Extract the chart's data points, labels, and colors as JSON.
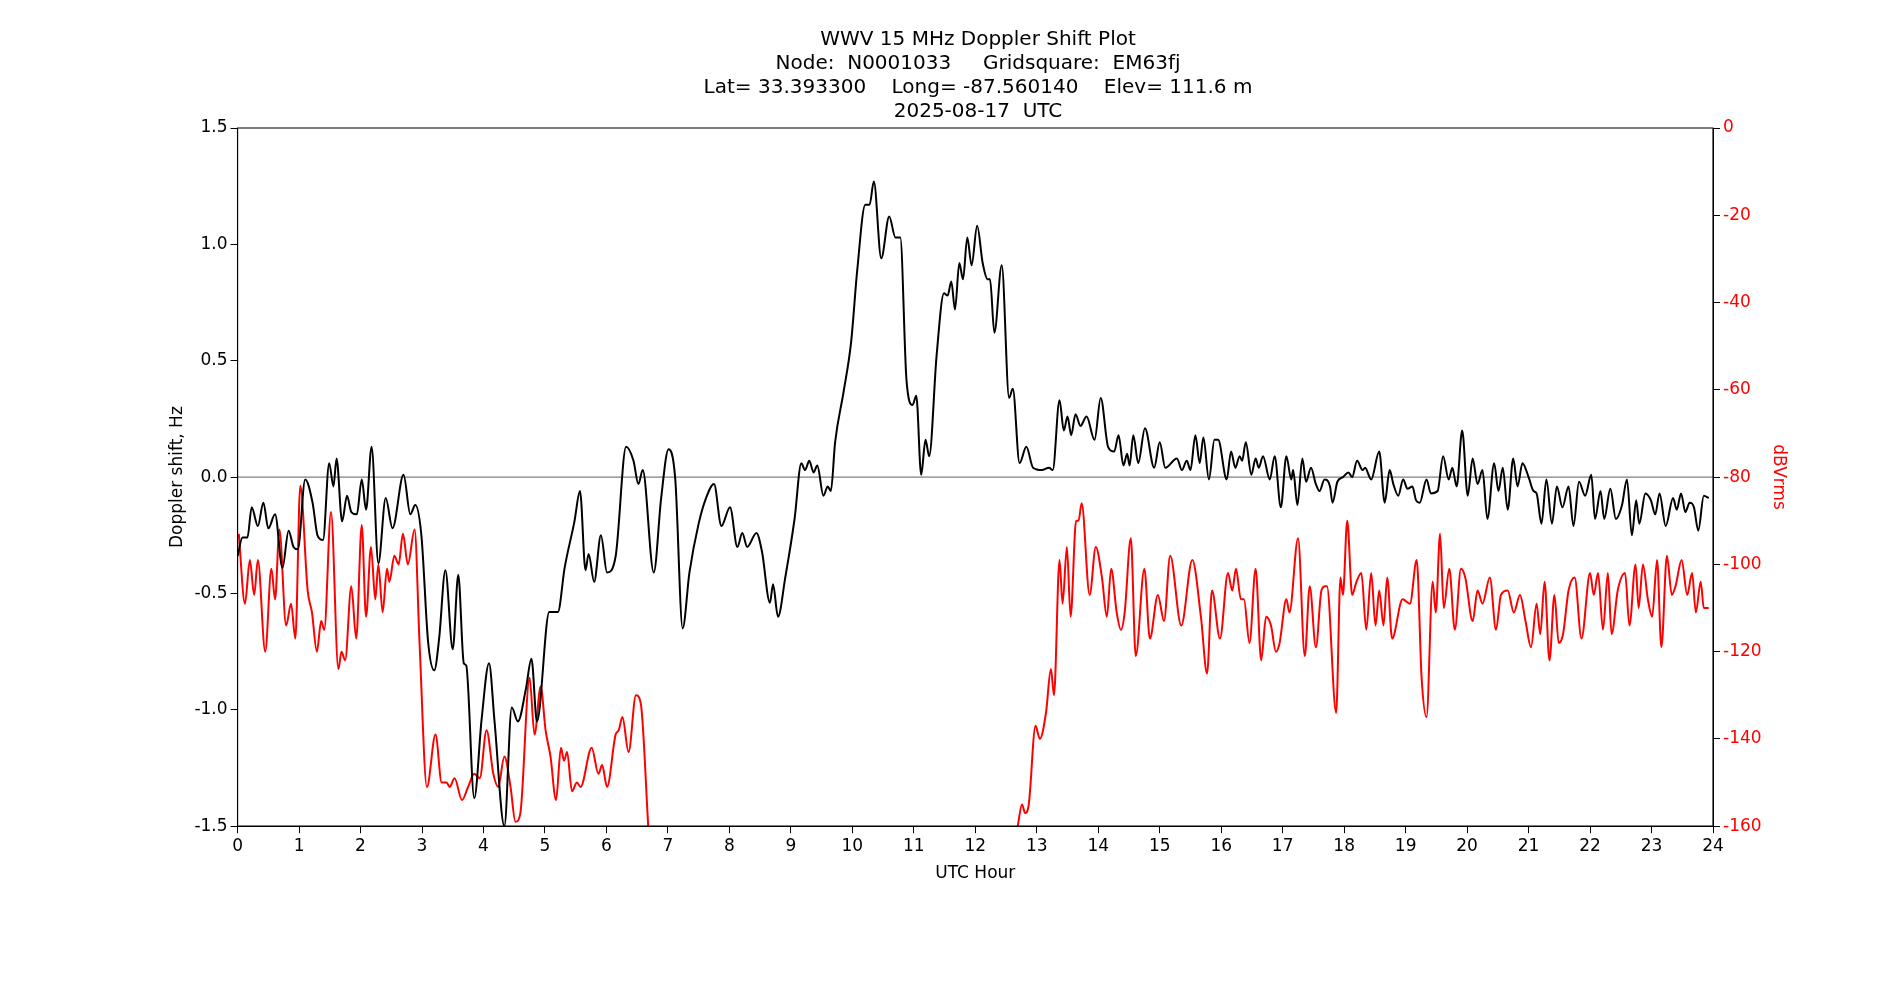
{
  "chart_data": {
    "type": "line",
    "title": "WWV 15 MHz Doppler Shift Plot",
    "subtitle": "Node:  N0001033     Gridsquare:  EM63fj\nLat= 33.393300    Long= -87.560140    Elev= 111.6 m\n2025-08-17  UTC",
    "xlabel": "UTC Hour",
    "ylabel": "Doppler shift, Hz",
    "y2label": "dBVrms",
    "xlim": [
      0,
      24
    ],
    "xticks": [
      0,
      1,
      2,
      3,
      4,
      5,
      6,
      7,
      8,
      9,
      10,
      11,
      12,
      13,
      14,
      15,
      16,
      17,
      18,
      19,
      20,
      21,
      22,
      23,
      24
    ],
    "ylim": [
      -1.5,
      1.5
    ],
    "yticks": [
      -1.5,
      {
        "value": -1,
        "label": "-1.0"
      },
      -0.5,
      {
        "value": 0,
        "label": "0.0"
      },
      0.5,
      {
        "value": 1,
        "label": "1.0"
      },
      1.5
    ],
    "y2lim": [
      -160,
      0
    ],
    "y2ticks": [
      -160,
      -140,
      -120,
      -100,
      -80,
      -60,
      -40,
      -20,
      0
    ],
    "grid": false,
    "legend": false,
    "marker": "none",
    "line_style": "solid",
    "ref_lines": [
      {
        "axis": "y",
        "value": 0,
        "color": "#808080"
      }
    ],
    "series": [
      {
        "color": "#000000",
        "x": [
          0,
          0.08,
          0.16,
          0.23,
          0.33,
          0.42,
          0.5,
          0.61,
          0.73,
          0.83,
          0.91,
          0.98,
          1.1,
          1.22,
          1.3,
          1.39,
          1.49,
          1.56,
          1.61,
          1.7,
          1.78,
          1.85,
          1.94,
          2.02,
          2.09,
          2.18,
          2.29,
          2.41,
          2.52,
          2.7,
          2.81,
          2.89,
          2.99,
          3.1,
          3.2,
          3.28,
          3.38,
          3.5,
          3.59,
          3.68,
          3.72,
          3.85,
          3.97,
          4.09,
          4.18,
          4.34,
          4.46,
          4.56,
          4.69,
          4.78,
          4.87,
          5.07,
          5.21,
          5.32,
          5.48,
          5.57,
          5.66,
          5.71,
          5.8,
          5.91,
          6.01,
          6.15,
          6.32,
          6.44,
          6.52,
          6.59,
          6.77,
          6.89,
          7.01,
          7.12,
          7.24,
          7.35,
          7.5,
          7.62,
          7.75,
          7.87,
          8.01,
          8.13,
          8.21,
          8.29,
          8.44,
          8.53,
          8.66,
          8.71,
          8.79,
          8.91,
          9.06,
          9.17,
          9.23,
          9.3,
          9.37,
          9.43,
          9.53,
          9.6,
          9.65,
          9.72,
          9.86,
          9.98,
          10.08,
          10.21,
          10.28,
          10.35,
          10.47,
          10.6,
          10.7,
          10.78,
          10.88,
          10.98,
          11.04,
          11.12,
          11.19,
          11.25,
          11.37,
          11.49,
          11.55,
          11.61,
          11.67,
          11.74,
          11.8,
          11.87,
          11.94,
          12.03,
          12.12,
          12.2,
          12.24,
          12.31,
          12.43,
          12.55,
          12.61,
          12.72,
          12.83,
          12.94,
          13.08,
          13.2,
          13.26,
          13.37,
          13.44,
          13.5,
          13.56,
          13.63,
          13.71,
          13.81,
          13.94,
          14.04,
          14.16,
          14.26,
          14.33,
          14.41,
          14.47,
          14.51,
          14.57,
          14.65,
          14.76,
          14.91,
          15.0,
          15.09,
          15.28,
          15.36,
          15.44,
          15.5,
          15.58,
          15.65,
          15.71,
          15.8,
          15.89,
          15.95,
          16.09,
          16.16,
          16.23,
          16.3,
          16.34,
          16.4,
          16.49,
          16.56,
          16.61,
          16.68,
          16.79,
          16.87,
          16.97,
          17.06,
          17.14,
          17.17,
          17.24,
          17.32,
          17.38,
          17.46,
          17.54,
          17.6,
          17.68,
          17.77,
          17.81,
          17.89,
          17.98,
          18.07,
          18.13,
          18.21,
          18.3,
          18.34,
          18.44,
          18.57,
          18.66,
          18.74,
          18.8,
          18.88,
          18.96,
          19.03,
          19.11,
          19.17,
          19.23,
          19.34,
          19.41,
          19.52,
          19.61,
          19.7,
          19.76,
          19.83,
          19.92,
          20.01,
          20.09,
          20.17,
          20.25,
          20.33,
          20.44,
          20.51,
          20.58,
          20.66,
          20.75,
          20.82,
          20.9,
          21.0,
          21.08,
          21.13,
          21.21,
          21.29,
          21.38,
          21.46,
          21.55,
          21.65,
          21.73,
          21.82,
          21.92,
          22.02,
          22.08,
          22.17,
          22.23,
          22.33,
          22.42,
          22.52,
          22.6,
          22.68,
          22.75,
          22.8,
          22.9,
          22.99,
          23.06,
          23.13,
          23.23,
          23.35,
          23.41,
          23.48,
          23.55,
          23.62,
          23.69,
          23.76,
          23.85,
          23.93
        ],
        "values": [
          -0.34,
          -0.26,
          -0.26,
          -0.13,
          -0.21,
          -0.11,
          -0.22,
          -0.16,
          -0.39,
          -0.23,
          -0.3,
          -0.31,
          -0.01,
          -0.11,
          -0.25,
          -0.27,
          0.06,
          -0.04,
          0.08,
          -0.19,
          -0.08,
          -0.15,
          -0.16,
          -0.01,
          -0.14,
          0.13,
          -0.37,
          -0.09,
          -0.22,
          0.01,
          -0.16,
          -0.12,
          -0.25,
          -0.71,
          -0.83,
          -0.69,
          -0.4,
          -0.74,
          -0.42,
          -0.8,
          -0.81,
          -1.38,
          -1.04,
          -0.8,
          -1.05,
          -1.5,
          -0.99,
          -1.05,
          -0.91,
          -0.78,
          -1.05,
          -0.58,
          -0.58,
          -0.39,
          -0.19,
          -0.06,
          -0.4,
          -0.33,
          -0.45,
          -0.25,
          -0.41,
          -0.34,
          0.13,
          0.07,
          -0.03,
          0.03,
          -0.41,
          -0.09,
          0.12,
          -0.01,
          -0.65,
          -0.41,
          -0.2,
          -0.09,
          -0.03,
          -0.21,
          -0.13,
          -0.3,
          -0.24,
          -0.3,
          -0.24,
          -0.32,
          -0.54,
          -0.46,
          -0.6,
          -0.43,
          -0.18,
          0.06,
          0.03,
          0.07,
          0.02,
          0.05,
          -0.08,
          -0.04,
          -0.06,
          0.15,
          0.37,
          0.58,
          0.89,
          1.17,
          1.17,
          1.27,
          0.94,
          1.12,
          1.03,
          1.03,
          0.42,
          0.31,
          0.35,
          0.01,
          0.16,
          0.09,
          0.52,
          0.79,
          0.78,
          0.84,
          0.72,
          0.92,
          0.85,
          1.03,
          0.91,
          1.08,
          0.92,
          0.85,
          0.85,
          0.62,
          0.91,
          0.34,
          0.38,
          0.06,
          0.13,
          0.04,
          0.03,
          0.04,
          0.03,
          0.33,
          0.2,
          0.26,
          0.18,
          0.27,
          0.22,
          0.26,
          0.16,
          0.34,
          0.13,
          0.11,
          0.18,
          0.05,
          0.1,
          0.05,
          0.18,
          0.06,
          0.21,
          0.04,
          0.15,
          0.04,
          0.08,
          0.03,
          0.07,
          0.03,
          0.18,
          0.06,
          0.17,
          -0.01,
          0.16,
          0.16,
          -0.01,
          0.11,
          0.04,
          0.09,
          0.07,
          0.15,
          0.01,
          0.08,
          0.04,
          0.09,
          -0.01,
          0.09,
          -0.13,
          0.09,
          -0.01,
          0.03,
          -0.12,
          0.08,
          -0.02,
          0.04,
          -0.03,
          -0.06,
          -0.01,
          -0.04,
          -0.11,
          -0.02,
          0.0,
          0.02,
          0.0,
          0.07,
          0.03,
          0.04,
          -0.01,
          0.11,
          -0.11,
          0.03,
          -0.03,
          -0.08,
          -0.01,
          -0.05,
          -0.04,
          -0.1,
          -0.11,
          -0.01,
          -0.07,
          -0.06,
          0.09,
          -0.01,
          0.04,
          -0.04,
          0.2,
          -0.08,
          0.08,
          -0.03,
          0.03,
          -0.18,
          0.06,
          -0.06,
          0.04,
          -0.14,
          0.08,
          -0.04,
          0.06,
          0.0,
          -0.06,
          -0.07,
          -0.2,
          -0.01,
          -0.2,
          -0.04,
          -0.13,
          -0.04,
          -0.21,
          -0.02,
          -0.08,
          0.01,
          -0.18,
          -0.06,
          -0.18,
          -0.05,
          -0.18,
          -0.12,
          -0.01,
          -0.25,
          -0.1,
          -0.2,
          -0.07,
          -0.1,
          -0.16,
          -0.07,
          -0.21,
          -0.09,
          -0.14,
          -0.07,
          -0.15,
          -0.11,
          -0.13,
          -0.23,
          -0.08,
          -0.09
        ]
      },
      {
        "color": "#ff0000",
        "axis": "y2",
        "x": [
          0.02,
          0.12,
          0.2,
          0.27,
          0.33,
          0.45,
          0.55,
          0.61,
          0.68,
          0.79,
          0.87,
          0.94,
          1.02,
          1.14,
          1.21,
          1.29,
          1.36,
          1.41,
          1.52,
          1.64,
          1.69,
          1.75,
          1.85,
          1.93,
          2.02,
          2.09,
          2.17,
          2.24,
          2.29,
          2.36,
          2.43,
          2.47,
          2.55,
          2.62,
          2.69,
          2.77,
          2.88,
          2.96,
          3.08,
          3.22,
          3.32,
          3.4,
          3.45,
          3.53,
          3.65,
          3.75,
          3.85,
          3.94,
          4.05,
          4.16,
          4.24,
          4.34,
          4.44,
          4.52,
          4.6,
          4.75,
          4.83,
          4.93,
          5.01,
          5.09,
          5.18,
          5.26,
          5.31,
          5.36,
          5.44,
          5.52,
          5.58,
          5.76,
          5.87,
          5.93,
          6.01,
          6.15,
          6.2,
          6.26,
          6.36,
          6.48,
          6.56,
          6.68,
          9.7,
          12.69,
          12.76,
          12.81,
          12.87,
          12.98,
          13.05,
          13.15,
          13.23,
          13.28,
          13.37,
          13.42,
          13.49,
          13.55,
          13.64,
          13.68,
          13.73,
          13.86,
          13.96,
          14.06,
          14.14,
          14.21,
          14.3,
          14.37,
          14.43,
          14.53,
          14.61,
          14.75,
          14.84,
          14.97,
          15.07,
          15.17,
          15.35,
          15.53,
          15.67,
          15.77,
          15.85,
          15.98,
          16.11,
          16.18,
          16.24,
          16.32,
          16.37,
          16.46,
          16.56,
          16.65,
          16.73,
          16.81,
          16.89,
          16.95,
          17.06,
          17.11,
          17.25,
          17.36,
          17.44,
          17.54,
          17.63,
          17.69,
          17.72,
          17.87,
          17.94,
          17.98,
          18.05,
          18.13,
          18.2,
          18.28,
          18.36,
          18.44,
          18.51,
          18.57,
          18.64,
          18.7,
          18.78,
          18.95,
          19.07,
          19.18,
          19.26,
          19.34,
          19.44,
          19.49,
          19.56,
          19.62,
          19.71,
          19.8,
          19.9,
          19.97,
          20.09,
          20.17,
          20.25,
          20.37,
          20.47,
          20.55,
          20.66,
          20.76,
          20.86,
          20.95,
          21.04,
          21.13,
          21.19,
          21.26,
          21.34,
          21.42,
          21.49,
          21.56,
          21.65,
          21.75,
          21.86,
          22.0,
          22.06,
          22.13,
          22.21,
          22.29,
          22.35,
          22.45,
          22.57,
          22.64,
          22.74,
          22.79,
          22.86,
          22.94,
          23.01,
          23.09,
          23.16,
          23.25,
          23.33,
          23.39,
          23.49,
          23.58,
          23.66,
          23.72,
          23.8,
          23.85,
          23.93
        ],
        "values": [
          -93,
          -109,
          -99,
          -107,
          -99,
          -120,
          -101,
          -108,
          -92,
          -114,
          -109,
          -117,
          -82,
          -106,
          -111,
          -120,
          -113,
          -115,
          -88,
          -124,
          -120,
          -122,
          -105,
          -117,
          -91,
          -112,
          -96,
          -108,
          -100,
          -111,
          -101,
          -104,
          -98,
          -100,
          -93,
          -100,
          -92,
          -118,
          -151,
          -139,
          -150,
          -150,
          -151,
          -149,
          -154,
          -151,
          -148,
          -149,
          -138,
          -148,
          -151,
          -144,
          -151,
          -159,
          -157,
          -126,
          -139,
          -128,
          -138,
          -144,
          -154,
          -142,
          -145,
          -143,
          -152,
          -150,
          -151,
          -142,
          -148,
          -146,
          -151,
          -139,
          -138,
          -135,
          -143,
          -130,
          -132,
          -160,
          null,
          -160,
          -155,
          -157,
          -155,
          -137,
          -140,
          -134,
          -124,
          -130,
          -99,
          -109,
          -96,
          -112,
          -90,
          -90,
          -86,
          -107,
          -96,
          -103,
          -112,
          -101,
          -111,
          -115,
          -111,
          -94,
          -121,
          -101,
          -117,
          -107,
          -113,
          -98,
          -114,
          -99,
          -112,
          -125,
          -106,
          -117,
          -102,
          -106,
          -101,
          -108,
          -108,
          -118,
          -101,
          -122,
          -112,
          -114,
          -120,
          -118,
          -108,
          -111,
          -94,
          -121,
          -105,
          -119,
          -106,
          -105,
          -105,
          -134,
          -103,
          -107,
          -90,
          -107,
          -104,
          -102,
          -115,
          -102,
          -114,
          -106,
          -114,
          -103,
          -117,
          -108,
          -109,
          -99,
          -126,
          -135,
          -104,
          -111,
          -93,
          -110,
          -101,
          -115,
          -101,
          -103,
          -113,
          -106,
          -109,
          -103,
          -115,
          -107,
          -106,
          -111,
          -107,
          -113,
          -119,
          -109,
          -116,
          -104,
          -122,
          -107,
          -118,
          -116,
          -106,
          -103,
          -117,
          -102,
          -107,
          -102,
          -115,
          -102,
          -116,
          -106,
          -102,
          -114,
          -100,
          -110,
          -100,
          -108,
          -112,
          -99,
          -119,
          -98,
          -107,
          -105,
          -99,
          -107,
          -102,
          -111,
          -104,
          -110,
          -110
        ]
      }
    ]
  }
}
